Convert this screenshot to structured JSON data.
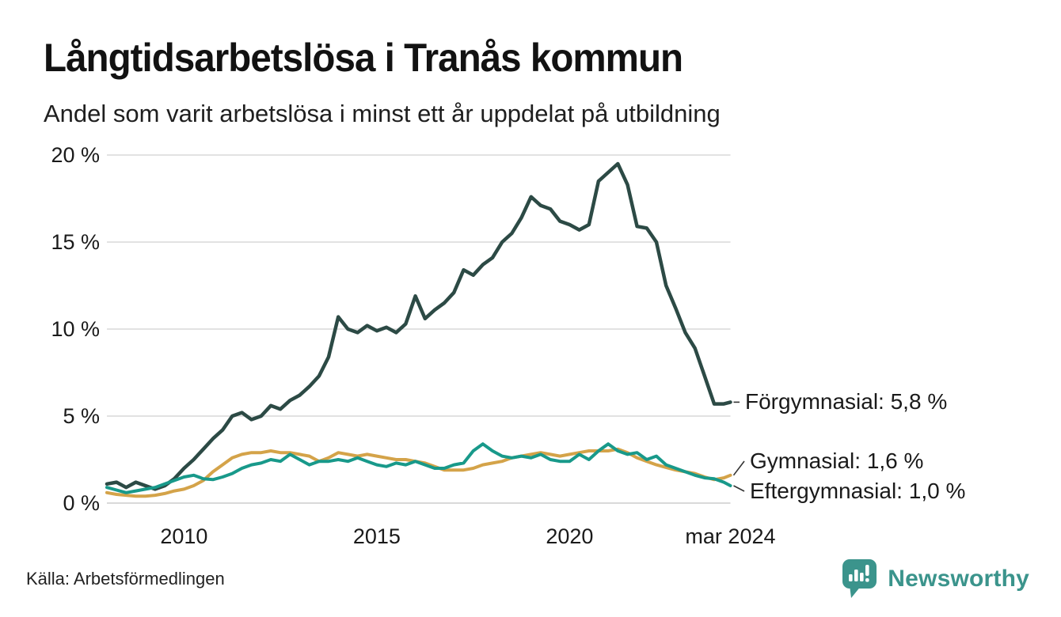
{
  "header": {
    "title": "Långtidsarbetslösa i Tranås kommun",
    "subtitle": "Andel som varit arbetslösa i minst ett år uppdelat på utbildning"
  },
  "footer": {
    "source": "Källa: Arbetsförmedlingen",
    "brand": "Newsworthy"
  },
  "colors": {
    "grid": "#e2e2e2",
    "grid_zero": "#d9d9d9",
    "text": "#1a1a1a",
    "connector": "#333333",
    "brand_teal": "#3b948c"
  },
  "chart_data": {
    "type": "line",
    "title": "Långtidsarbetslösa i Tranås kommun",
    "subtitle": "Andel som varit arbetslösa i minst ett år uppdelat på utbildning",
    "x_unit": "decimal_year",
    "xlim": [
      2008,
      2024.25
    ],
    "ylim": [
      0,
      20
    ],
    "grid": "horizontal",
    "legend_position": "end-of-line labels",
    "yticks": [
      {
        "value": 0,
        "label": "0 %"
      },
      {
        "value": 5,
        "label": "5 %"
      },
      {
        "value": 10,
        "label": "10 %"
      },
      {
        "value": 15,
        "label": "15 %"
      },
      {
        "value": 20,
        "label": "20 %"
      }
    ],
    "xticks": [
      {
        "value": 2010,
        "label": "2010"
      },
      {
        "value": 2015,
        "label": "2015"
      },
      {
        "value": 2020,
        "label": "2020"
      },
      {
        "value": 2024.17,
        "label": "mar 2024"
      }
    ],
    "x": [
      2008,
      2008.25,
      2008.5,
      2008.75,
      2009,
      2009.25,
      2009.5,
      2009.75,
      2010,
      2010.25,
      2010.5,
      2010.75,
      2011,
      2011.25,
      2011.5,
      2011.75,
      2012,
      2012.25,
      2012.5,
      2012.75,
      2013,
      2013.25,
      2013.5,
      2013.75,
      2014,
      2014.25,
      2014.5,
      2014.75,
      2015,
      2015.25,
      2015.5,
      2015.75,
      2016,
      2016.25,
      2016.5,
      2016.75,
      2017,
      2017.25,
      2017.5,
      2017.75,
      2018,
      2018.25,
      2018.5,
      2018.75,
      2019,
      2019.25,
      2019.5,
      2019.75,
      2020,
      2020.25,
      2020.5,
      2020.75,
      2021,
      2021.25,
      2021.5,
      2021.75,
      2022,
      2022.25,
      2022.5,
      2022.75,
      2023,
      2023.25,
      2023.5,
      2023.75,
      2024,
      2024.17
    ],
    "series": [
      {
        "name": "Förgymnasial",
        "color": "#2c4a45",
        "end_label": "Förgymnasial: 5,8 %",
        "end_value": "5,8 %",
        "values": [
          1.1,
          1.2,
          0.9,
          1.2,
          1.0,
          0.8,
          1.0,
          1.4,
          2.0,
          2.5,
          3.1,
          3.7,
          4.2,
          5.0,
          5.2,
          4.8,
          5.0,
          5.6,
          5.4,
          5.9,
          6.2,
          6.7,
          7.3,
          8.4,
          10.7,
          10.0,
          9.8,
          10.2,
          9.9,
          10.1,
          9.8,
          10.3,
          11.9,
          10.6,
          11.1,
          11.5,
          12.1,
          13.4,
          13.1,
          13.7,
          14.1,
          15.0,
          15.5,
          16.4,
          17.6,
          17.1,
          16.9,
          16.2,
          16.0,
          15.7,
          16.0,
          18.5,
          19.0,
          19.5,
          18.3,
          15.9,
          15.8,
          15.0,
          12.5,
          11.2,
          9.8,
          8.9,
          7.3,
          5.7,
          5.7,
          5.8
        ]
      },
      {
        "name": "Gymnasial",
        "color": "#d4a349",
        "end_label": "Gymnasial: 1,6 %",
        "end_value": "1,6 %",
        "values": [
          0.6,
          0.5,
          0.45,
          0.4,
          0.4,
          0.45,
          0.55,
          0.7,
          0.8,
          1.0,
          1.3,
          1.8,
          2.2,
          2.6,
          2.8,
          2.9,
          2.9,
          3.0,
          2.9,
          2.9,
          2.8,
          2.7,
          2.4,
          2.6,
          2.9,
          2.8,
          2.7,
          2.8,
          2.7,
          2.6,
          2.5,
          2.5,
          2.4,
          2.3,
          2.1,
          1.9,
          1.9,
          1.9,
          2.0,
          2.2,
          2.3,
          2.4,
          2.6,
          2.7,
          2.8,
          2.9,
          2.8,
          2.7,
          2.8,
          2.9,
          3.0,
          3.0,
          3.0,
          3.1,
          2.9,
          2.6,
          2.4,
          2.2,
          2.05,
          1.9,
          1.8,
          1.7,
          1.5,
          1.35,
          1.45,
          1.6
        ]
      },
      {
        "name": "Eftergymnasial",
        "color": "#18998a",
        "end_label": "Eftergymnasial: 1,0 %",
        "end_value": "1,0 %",
        "values": [
          0.9,
          0.75,
          0.6,
          0.7,
          0.8,
          0.9,
          1.1,
          1.3,
          1.5,
          1.6,
          1.4,
          1.35,
          1.5,
          1.7,
          2.0,
          2.2,
          2.3,
          2.5,
          2.4,
          2.8,
          2.5,
          2.2,
          2.4,
          2.4,
          2.5,
          2.4,
          2.6,
          2.4,
          2.2,
          2.1,
          2.3,
          2.2,
          2.4,
          2.2,
          2.0,
          2.0,
          2.2,
          2.3,
          3.0,
          3.4,
          3.0,
          2.7,
          2.6,
          2.7,
          2.6,
          2.8,
          2.5,
          2.4,
          2.4,
          2.8,
          2.5,
          3.0,
          3.4,
          3.0,
          2.8,
          2.9,
          2.5,
          2.7,
          2.2,
          2.0,
          1.8,
          1.6,
          1.45,
          1.4,
          1.2,
          1.0
        ]
      }
    ]
  }
}
